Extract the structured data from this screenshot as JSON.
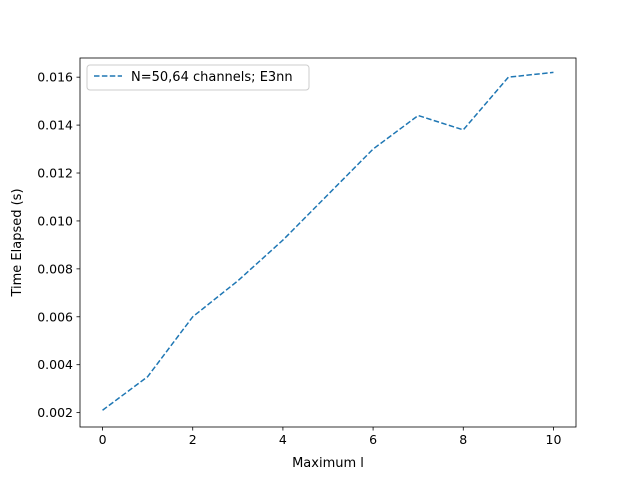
{
  "chart_data": {
    "type": "line",
    "title": "",
    "xlabel": "Maximum l",
    "ylabel": "Time Elapsed (s)",
    "xlim": [
      -0.5,
      10.5
    ],
    "ylim": [
      0.0014,
      0.0168
    ],
    "x_ticks": [
      0,
      2,
      4,
      6,
      8,
      10
    ],
    "x_tick_labels": [
      "0",
      "2",
      "4",
      "6",
      "8",
      "10"
    ],
    "y_ticks": [
      0.002,
      0.004,
      0.006,
      0.008,
      0.01,
      0.012,
      0.014,
      0.016
    ],
    "y_tick_labels": [
      "0.002",
      "0.004",
      "0.006",
      "0.008",
      "0.010",
      "0.012",
      "0.014",
      "0.016"
    ],
    "grid": false,
    "legend": "top-left",
    "series": [
      {
        "name": "N=50,64 channels; E3nn",
        "color": "#1f77b4",
        "line_style": "dashed",
        "x": [
          0,
          1,
          2,
          3,
          4,
          5,
          6,
          7,
          8,
          9,
          10
        ],
        "values": [
          0.0021,
          0.0035,
          0.006,
          0.0075,
          0.0092,
          0.0111,
          0.013,
          0.0144,
          0.0138,
          0.016,
          0.0162
        ]
      }
    ]
  }
}
